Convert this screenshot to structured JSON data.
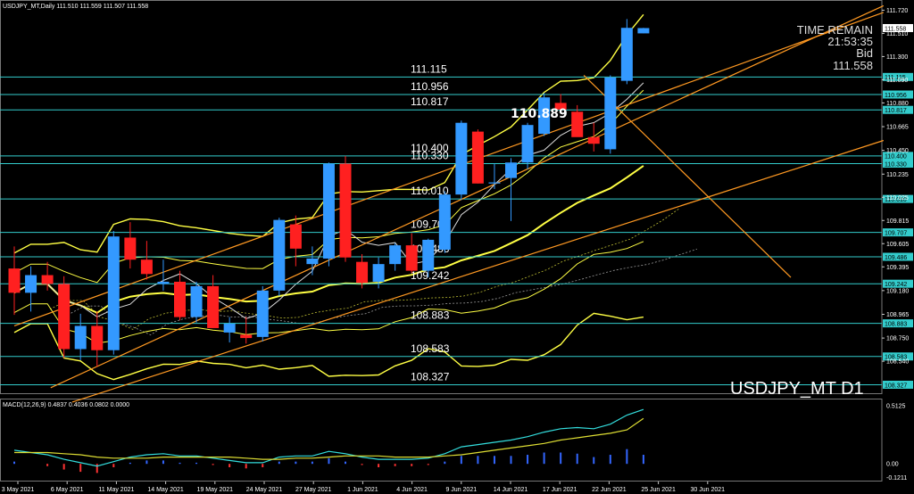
{
  "window": {
    "info": "USDJPY_MT,Daily  111.510 111.559 111.507 111.558",
    "symbol_label": "USDJPY_MT D1"
  },
  "overlay": {
    "time_remain_label": "TIME REMAIN",
    "time_remain_value": "21:53:35",
    "bid_label": "Bid",
    "bid_value": "111.558",
    "callout": "110.889"
  },
  "colors": {
    "bull": "#3399ff",
    "bear": "#ff2020",
    "level": "#33cccc",
    "trend": "#ff9922",
    "bollinger": "#ffff44",
    "ma_white": "#dddddd",
    "macd_main": "#33dddd",
    "macd_signal": "#dddd33"
  },
  "chart_data": {
    "type": "candlestick",
    "symbol": "USDJPY_MT",
    "timeframe": "Daily",
    "ylim": [
      108.25,
      111.78
    ],
    "y_ticks": [
      "111.720",
      "111.510",
      "111.300",
      "111.090",
      "110.880",
      "110.665",
      "110.450",
      "110.235",
      "110.025",
      "109.815",
      "109.605",
      "109.395",
      "109.180",
      "108.965",
      "108.750",
      "108.540"
    ],
    "x_labels": [
      "3 May 2021",
      "6 May 2021",
      "11 May 2021",
      "14 May 2021",
      "19 May 2021",
      "24 May 2021",
      "27 May 2021",
      "1 Jun 2021",
      "4 Jun 2021",
      "9 Jun 2021",
      "14 Jun 2021",
      "17 Jun 2021",
      "22 Jun 2021",
      "25 Jun 2021",
      "30 Jun 2021"
    ],
    "candles": [
      {
        "o": 109.38,
        "h": 109.58,
        "l": 108.96,
        "c": 109.16
      },
      {
        "o": 109.16,
        "h": 109.4,
        "l": 108.99,
        "c": 109.32
      },
      {
        "o": 109.32,
        "h": 109.44,
        "l": 109.18,
        "c": 109.24
      },
      {
        "o": 109.24,
        "h": 109.31,
        "l": 108.57,
        "c": 108.65
      },
      {
        "o": 108.65,
        "h": 108.97,
        "l": 108.55,
        "c": 108.86
      },
      {
        "o": 108.86,
        "h": 108.99,
        "l": 108.49,
        "c": 108.64
      },
      {
        "o": 108.64,
        "h": 109.72,
        "l": 108.6,
        "c": 109.67
      },
      {
        "o": 109.66,
        "h": 109.8,
        "l": 109.38,
        "c": 109.46
      },
      {
        "o": 109.46,
        "h": 109.63,
        "l": 109.28,
        "c": 109.33
      },
      {
        "o": 109.24,
        "h": 109.46,
        "l": 109.18,
        "c": 109.26
      },
      {
        "o": 109.26,
        "h": 109.36,
        "l": 108.91,
        "c": 108.94
      },
      {
        "o": 108.94,
        "h": 109.26,
        "l": 108.89,
        "c": 109.22
      },
      {
        "o": 109.22,
        "h": 109.32,
        "l": 108.84,
        "c": 108.84
      },
      {
        "o": 108.8,
        "h": 108.94,
        "l": 108.71,
        "c": 108.88
      },
      {
        "o": 108.78,
        "h": 108.94,
        "l": 108.7,
        "c": 108.75
      },
      {
        "o": 108.76,
        "h": 109.22,
        "l": 108.72,
        "c": 109.18
      },
      {
        "o": 109.18,
        "h": 109.84,
        "l": 109.13,
        "c": 109.82
      },
      {
        "o": 109.78,
        "h": 109.86,
        "l": 109.4,
        "c": 109.56
      },
      {
        "o": 109.42,
        "h": 109.58,
        "l": 109.32,
        "c": 109.47
      },
      {
        "o": 109.47,
        "h": 110.34,
        "l": 109.4,
        "c": 110.33
      },
      {
        "o": 110.33,
        "h": 110.4,
        "l": 109.44,
        "c": 109.48
      },
      {
        "o": 109.44,
        "h": 109.51,
        "l": 109.2,
        "c": 109.25
      },
      {
        "o": 109.26,
        "h": 109.48,
        "l": 109.2,
        "c": 109.42
      },
      {
        "o": 109.42,
        "h": 109.61,
        "l": 109.36,
        "c": 109.59
      },
      {
        "o": 109.59,
        "h": 109.7,
        "l": 109.34,
        "c": 109.36
      },
      {
        "o": 109.36,
        "h": 109.65,
        "l": 109.3,
        "c": 109.64
      },
      {
        "o": 109.55,
        "h": 110.08,
        "l": 109.52,
        "c": 110.05
      },
      {
        "o": 110.05,
        "h": 110.72,
        "l": 110.0,
        "c": 110.7
      },
      {
        "o": 110.62,
        "h": 110.64,
        "l": 110.15,
        "c": 110.15
      },
      {
        "o": 110.15,
        "h": 110.33,
        "l": 110.1,
        "c": 110.16
      },
      {
        "o": 110.2,
        "h": 110.38,
        "l": 109.81,
        "c": 110.34
      },
      {
        "o": 110.34,
        "h": 110.7,
        "l": 110.28,
        "c": 110.68
      },
      {
        "o": 110.6,
        "h": 110.97,
        "l": 110.58,
        "c": 110.93
      },
      {
        "o": 110.88,
        "h": 110.96,
        "l": 110.8,
        "c": 110.82
      },
      {
        "o": 110.8,
        "h": 110.86,
        "l": 110.58,
        "c": 110.57
      },
      {
        "o": 110.57,
        "h": 110.7,
        "l": 110.44,
        "c": 110.51
      },
      {
        "o": 110.46,
        "h": 111.13,
        "l": 110.42,
        "c": 111.11
      },
      {
        "o": 111.08,
        "h": 111.64,
        "l": 111.05,
        "c": 111.56
      },
      {
        "o": 111.51,
        "h": 111.56,
        "l": 111.51,
        "c": 111.558
      }
    ],
    "levels": [
      {
        "price": 111.115,
        "label": "111.115"
      },
      {
        "price": 110.956,
        "label": "110.956"
      },
      {
        "price": 110.817,
        "label": "110.817"
      },
      {
        "price": 110.4,
        "label": "110.400"
      },
      {
        "price": 110.33,
        "label": "110.330"
      },
      {
        "price": 110.01,
        "label": "110.010"
      },
      {
        "price": 109.707,
        "label": "109.707"
      },
      {
        "price": 109.486,
        "label": "109.486"
      },
      {
        "price": 109.242,
        "label": "109.242"
      },
      {
        "price": 108.883,
        "label": "108.883"
      },
      {
        "price": 108.583,
        "label": "108.583"
      },
      {
        "price": 108.327,
        "label": "108.327"
      }
    ],
    "current_price": {
      "price": 111.558,
      "label": "111.558"
    },
    "macd": {
      "label": "MACD(12,26,9) 0.4837 0.4036 0.0802 0.0000",
      "y_ticks": [
        "0.5125",
        "0.00",
        "-0.1211"
      ],
      "ylim": [
        -0.14,
        0.56
      ],
      "main": [
        0.12,
        0.1,
        0.08,
        0.04,
        0.01,
        -0.02,
        0.02,
        0.06,
        0.08,
        0.09,
        0.07,
        0.07,
        0.05,
        0.03,
        0.01,
        0.01,
        0.06,
        0.07,
        0.07,
        0.11,
        0.09,
        0.06,
        0.04,
        0.04,
        0.04,
        0.05,
        0.09,
        0.15,
        0.17,
        0.19,
        0.21,
        0.24,
        0.28,
        0.31,
        0.32,
        0.31,
        0.35,
        0.43,
        0.48
      ],
      "signal": [
        0.1,
        0.1,
        0.1,
        0.09,
        0.08,
        0.06,
        0.05,
        0.05,
        0.05,
        0.06,
        0.06,
        0.06,
        0.06,
        0.06,
        0.05,
        0.04,
        0.04,
        0.05,
        0.05,
        0.06,
        0.07,
        0.07,
        0.07,
        0.06,
        0.06,
        0.06,
        0.07,
        0.08,
        0.1,
        0.12,
        0.14,
        0.16,
        0.18,
        0.21,
        0.23,
        0.25,
        0.27,
        0.3,
        0.4
      ],
      "hist": [
        0.02,
        0.0,
        -0.02,
        -0.05,
        -0.07,
        -0.08,
        -0.03,
        0.01,
        0.03,
        0.03,
        0.01,
        0.01,
        -0.01,
        -0.03,
        -0.04,
        -0.03,
        0.02,
        0.02,
        0.02,
        0.05,
        0.02,
        -0.01,
        -0.03,
        -0.02,
        -0.02,
        -0.01,
        0.02,
        0.07,
        0.07,
        0.07,
        0.07,
        0.08,
        0.1,
        0.1,
        0.09,
        0.06,
        0.08,
        0.13,
        0.08
      ]
    }
  }
}
